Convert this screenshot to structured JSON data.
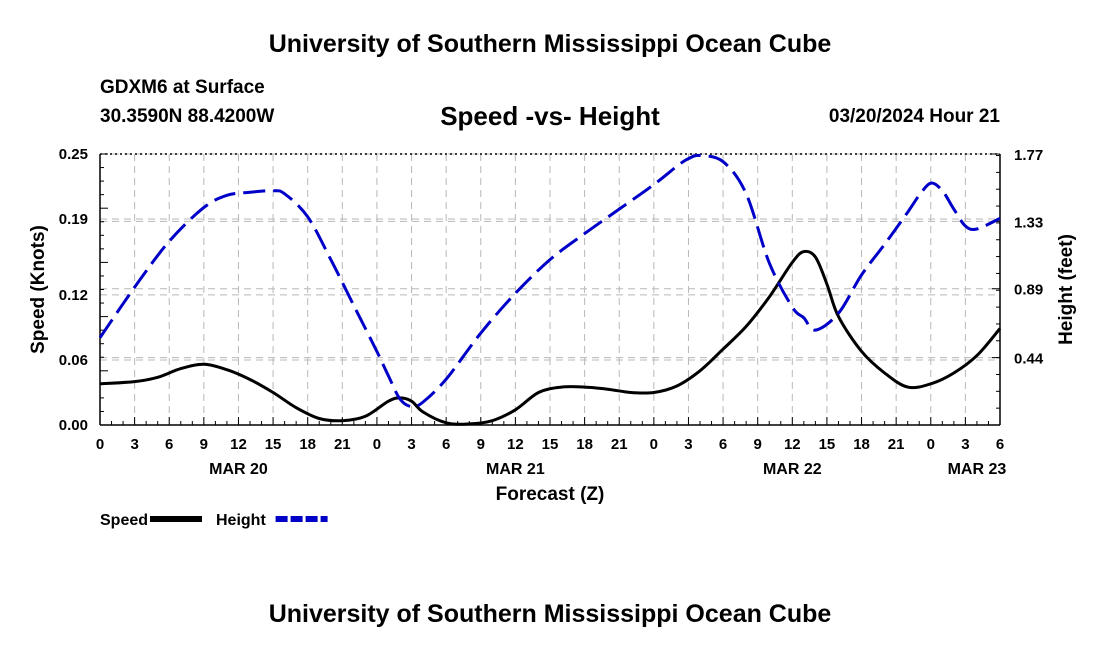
{
  "header": {
    "title": "University of Southern Mississippi Ocean Cube",
    "station": "GDXM6 at Surface",
    "coords": "30.3590N  88.4200W",
    "subtitle": "Speed -vs- Height",
    "date": "03/20/2024 Hour 21"
  },
  "footer": {
    "title": "University of Southern Mississippi Ocean Cube"
  },
  "chart_data": {
    "type": "line",
    "title": "Speed -vs- Height",
    "xlabel": "Forecast (Z)",
    "ylabel": "Speed (Knots)",
    "y2label": "Height (feet)",
    "xlim": [
      0,
      78
    ],
    "ylim": [
      0,
      0.25
    ],
    "y2lim": [
      0,
      1.77
    ],
    "x_ticks": [
      0,
      3,
      6,
      9,
      12,
      15,
      18,
      21,
      24,
      27,
      30,
      33,
      36,
      39,
      42,
      45,
      48,
      51,
      54,
      57,
      60,
      63,
      66,
      69,
      72,
      75,
      78
    ],
    "x_tick_labels": [
      "0",
      "3",
      "6",
      "9",
      "12",
      "15",
      "18",
      "21",
      "0",
      "3",
      "6",
      "9",
      "12",
      "15",
      "18",
      "21",
      "0",
      "3",
      "6",
      "9",
      "12",
      "15",
      "18",
      "21",
      "0",
      "3",
      "6"
    ],
    "y_tick_labels": [
      "0.00",
      "0.06",
      "0.12",
      "0.19",
      "0.25"
    ],
    "y2_tick_labels": [
      "0.44",
      "0.89",
      "1.33",
      "1.77"
    ],
    "y2_ticks": [
      0.44,
      0.89,
      1.33,
      1.77
    ],
    "date_labels": [
      {
        "x": 12,
        "label": "MAR 20"
      },
      {
        "x": 36,
        "label": "MAR 21"
      },
      {
        "x": 60,
        "label": "MAR 22"
      },
      {
        "x": 76,
        "label": "MAR 23"
      }
    ],
    "grid": true,
    "legend_position": "bottom-left",
    "series": [
      {
        "name": "Speed",
        "axis": "left",
        "color": "#000000",
        "style": "solid",
        "x": [
          0,
          3,
          5,
          7,
          9,
          11,
          13,
          15,
          17,
          19,
          21,
          23,
          25,
          26,
          27,
          28,
          30,
          32,
          34,
          36,
          38,
          40,
          42,
          44,
          46,
          48,
          50,
          52,
          54,
          56,
          58,
          60,
          61,
          62,
          63,
          64,
          66,
          68,
          70,
          72,
          74,
          76,
          78
        ],
        "y": [
          0.038,
          0.04,
          0.044,
          0.052,
          0.056,
          0.051,
          0.042,
          0.03,
          0.016,
          0.006,
          0.004,
          0.008,
          0.022,
          0.025,
          0.022,
          0.012,
          0.002,
          0.001,
          0.004,
          0.014,
          0.03,
          0.035,
          0.035,
          0.033,
          0.03,
          0.03,
          0.036,
          0.05,
          0.07,
          0.091,
          0.118,
          0.15,
          0.16,
          0.155,
          0.13,
          0.1,
          0.068,
          0.048,
          0.035,
          0.038,
          0.048,
          0.064,
          0.089
        ]
      },
      {
        "name": "Height",
        "axis": "right",
        "color": "#0000c8",
        "style": "dashed",
        "x": [
          0,
          3,
          6,
          9,
          11,
          13,
          15,
          16,
          18,
          20,
          22,
          24,
          25,
          26,
          27,
          28,
          30,
          33,
          36,
          39,
          42,
          45,
          48,
          50,
          51,
          52,
          54,
          56,
          58,
          60,
          61,
          62,
          64,
          66,
          68,
          70,
          71,
          72,
          73,
          74,
          75,
          76,
          78
        ],
        "y": [
          0.57,
          0.9,
          1.2,
          1.42,
          1.5,
          1.52,
          1.53,
          1.51,
          1.36,
          1.08,
          0.78,
          0.48,
          0.32,
          0.17,
          0.12,
          0.15,
          0.3,
          0.6,
          0.86,
          1.08,
          1.25,
          1.41,
          1.57,
          1.69,
          1.74,
          1.76,
          1.72,
          1.51,
          1.06,
          0.77,
          0.7,
          0.62,
          0.73,
          0.98,
          1.18,
          1.39,
          1.5,
          1.58,
          1.53,
          1.41,
          1.3,
          1.28,
          1.35
        ]
      }
    ]
  }
}
